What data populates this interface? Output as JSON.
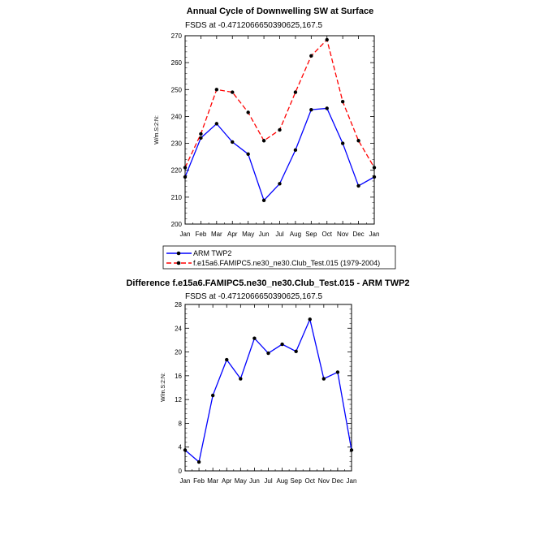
{
  "colors": {
    "obs": "#0000ff",
    "model": "#ff0000",
    "diff": "#0000ff",
    "frame": "#000000"
  },
  "chart_data": [
    {
      "type": "line",
      "title": "Annual Cycle of Downwelling SW at Surface",
      "subtitle": "FSDS at -0.4712066650390625,167.5",
      "xlabel": "",
      "ylabel": "W/m.S:2:N:",
      "categories": [
        "Jan",
        "Feb",
        "Mar",
        "Apr",
        "May",
        "Jun",
        "Jul",
        "Aug",
        "Sep",
        "Oct",
        "Nov",
        "Dec",
        "Jan"
      ],
      "ylim": [
        200,
        270
      ],
      "yticks": [
        "200",
        "210",
        "220",
        "230",
        "240",
        "250",
        "260",
        "270"
      ],
      "series": [
        {
          "name": "ARM TWP2",
          "style": "solid",
          "values": [
            217.5,
            232.0,
            237.3,
            230.5,
            226.0,
            208.8,
            215.0,
            227.5,
            242.5,
            243.0,
            230.0,
            214.2,
            217.5
          ]
        },
        {
          "name": "f.e15a6.FAMIPC5.ne30_ne30.Club_Test.015 (1979-2004)",
          "style": "dashed",
          "values": [
            221.0,
            233.5,
            250.0,
            249.0,
            241.5,
            231.0,
            235.0,
            249.0,
            262.5,
            268.5,
            245.5,
            231.0,
            221.0
          ]
        }
      ],
      "legend_position": "bottom"
    },
    {
      "type": "line",
      "title": "Difference f.e15a6.FAMIPC5.ne30_ne30.Club_Test.015 - ARM TWP2",
      "subtitle": "FSDS at -0.4712066650390625,167.5",
      "xlabel": "",
      "ylabel": "W/m.S:2:N:",
      "categories": [
        "Jan",
        "Feb",
        "Mar",
        "Apr",
        "May",
        "Jun",
        "Jul",
        "Aug",
        "Sep",
        "Oct",
        "Nov",
        "Dec",
        "Jan"
      ],
      "ylim": [
        0,
        28
      ],
      "yticks": [
        "0",
        "4",
        "8",
        "12",
        "16",
        "20",
        "24",
        "28"
      ],
      "series": [
        {
          "name": "Difference",
          "style": "solid",
          "values": [
            3.5,
            1.5,
            12.7,
            18.7,
            15.5,
            22.3,
            19.8,
            21.3,
            20.1,
            25.5,
            15.5,
            16.6,
            3.5
          ]
        }
      ]
    }
  ]
}
